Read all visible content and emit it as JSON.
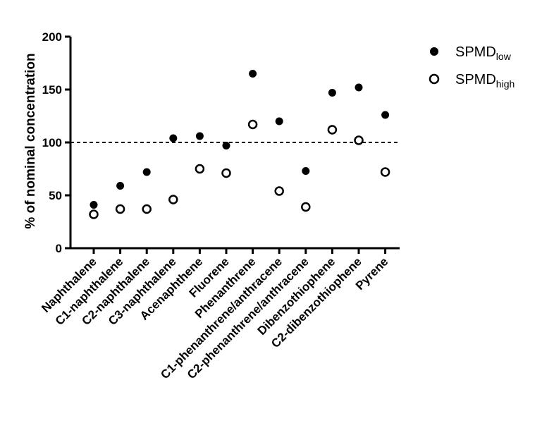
{
  "chart_data": {
    "type": "scatter",
    "categories": [
      "Naphthalene",
      "C1-naphthalene",
      "C2-naphthalene",
      "C3-naphthalene",
      "Acenaphthene",
      "Fluorene",
      "Phenanthrene",
      "C1-phenanthrene/anthracene",
      "C2-phenanthrene/anthracene",
      "Dibenzothiophene",
      "C2-dibenzothiophene",
      "Pyrene"
    ],
    "series": [
      {
        "name": "SPMDlow",
        "name_main": "SPMD",
        "name_sub": "low",
        "marker": "filled-circle",
        "color": "#000000",
        "values": [
          41,
          59,
          72,
          104,
          106,
          97,
          165,
          120,
          73,
          147,
          152,
          126
        ]
      },
      {
        "name": "SPMDhigh",
        "name_main": "SPMD",
        "name_sub": "high",
        "marker": "open-circle",
        "color": "#000000",
        "values": [
          32,
          37,
          37,
          46,
          75,
          71,
          117,
          54,
          39,
          112,
          102,
          72
        ]
      }
    ],
    "title": "",
    "xlabel": "",
    "ylabel": "% of nominal concentration",
    "ylim": [
      0,
      200
    ],
    "yticks": [
      0,
      50,
      100,
      150,
      200
    ],
    "reference_line": {
      "value": 100,
      "style": "dashed"
    },
    "grid": false,
    "legend_position": "top-right"
  }
}
